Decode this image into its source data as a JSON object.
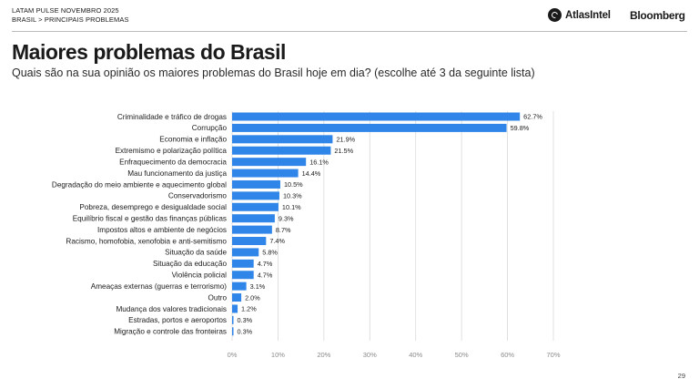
{
  "header": {
    "line1": "LATAM PULSE NOVEMBRO 2025",
    "line2": "BRASIL > PRINCIPAIS PROBLEMAS"
  },
  "brands": {
    "atlas": "AtlasIntel",
    "bloomberg": "Bloomberg"
  },
  "page": {
    "title": "Maiores problemas do Brasil",
    "subtitle": "Quais são na sua opinião os maiores problemas do Brasil hoje em dia? (escolhe até 3 da seguinte lista)",
    "page_number": "29"
  },
  "colors": {
    "bar": "#2f86e8",
    "grid": "#d9d9d9",
    "axis_text": "#8a8a8a"
  },
  "chart_data": {
    "type": "bar",
    "orientation": "horizontal",
    "categories": [
      "Criminalidade e tráfico de drogas",
      "Corrupção",
      "Economia e inflação",
      "Extremismo e polarização política",
      "Enfraquecimento da democracia",
      "Mau funcionamento da justiça",
      "Degradação do meio ambiente e aquecimento global",
      "Conservadorismo",
      "Pobreza, desemprego e desigualdade social",
      "Equilíbrio fiscal e gestão das finanças públicas",
      "Impostos altos e ambiente de negócios",
      "Racismo, homofobia, xenofobia e anti-semitismo",
      "Situação da saúde",
      "Situação da educação",
      "Violência policial",
      "Ameaças externas (guerras e terrorismo)",
      "Outro",
      "Mudança dos valores tradicionais",
      "Estradas, portos e aeroportos",
      "Migração e controle das fronteiras"
    ],
    "values": [
      62.7,
      59.8,
      21.9,
      21.5,
      16.1,
      14.4,
      10.5,
      10.3,
      10.1,
      9.3,
      8.7,
      7.4,
      5.8,
      4.7,
      4.7,
      3.1,
      2.0,
      1.2,
      0.3,
      0.3
    ],
    "value_labels": [
      "62.7%",
      "59.8%",
      "21.9%",
      "21.5%",
      "16.1%",
      "14.4%",
      "10.5%",
      "10.3%",
      "10.1%",
      "9.3%",
      "8.7%",
      "7.4%",
      "5.8%",
      "4.7%",
      "4.7%",
      "3.1%",
      "2.0%",
      "1.2%",
      "0.3%",
      "0.3%"
    ],
    "xlim": [
      0,
      70
    ],
    "xticks": [
      0,
      10,
      20,
      30,
      40,
      50,
      60,
      70
    ],
    "xtick_labels": [
      "0%",
      "10%",
      "20%",
      "30%",
      "40%",
      "50%",
      "60%",
      "70%"
    ],
    "grid": true,
    "legend": "none"
  }
}
